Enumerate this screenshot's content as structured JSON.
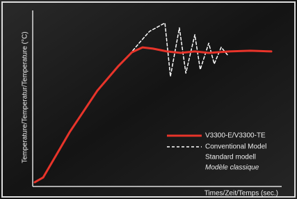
{
  "chart_data": {
    "type": "line",
    "x_label": "Times/Zeit/Temps (sec.)",
    "y_label": "Temperature/Temperatur/Temperature (°C)",
    "xlim": [
      0,
      100
    ],
    "ylim": [
      0,
      100
    ],
    "series": [
      {
        "name": "V3300-E/V3300-TE",
        "color": "#e8342a",
        "dashed": false,
        "x": [
          0.8,
          4.2,
          14.8,
          26,
          34.4,
          39.9,
          44.1,
          48.3,
          53.9,
          59.5,
          65.1,
          70.7,
          79.1,
          87.4,
          95.8
        ],
        "values": [
          2.4,
          5.1,
          30.8,
          54.5,
          68.4,
          76.3,
          79,
          78.3,
          76.7,
          75.9,
          76.7,
          75.9,
          76.7,
          77.1,
          76.7
        ]
      },
      {
        "name": "Conventional Model",
        "color": "#ffffff",
        "dashed": true,
        "x": [
          0.8,
          4.2,
          14.8,
          26,
          34.4,
          38.5,
          42.7,
          46.9,
          53.1,
          55.3,
          58.9,
          61.5,
          65.1,
          67.3,
          70.7,
          72.9,
          75.7,
          78.5
        ],
        "values": [
          2.4,
          5.1,
          30.8,
          54.5,
          68.4,
          74.3,
          81.4,
          88.1,
          92.9,
          62.5,
          90.1,
          64.4,
          86.2,
          66.4,
          81.4,
          69.6,
          79.1,
          74.3
        ]
      }
    ],
    "legend_extra": [
      "Standard modell",
      "Modèle classique"
    ]
  }
}
